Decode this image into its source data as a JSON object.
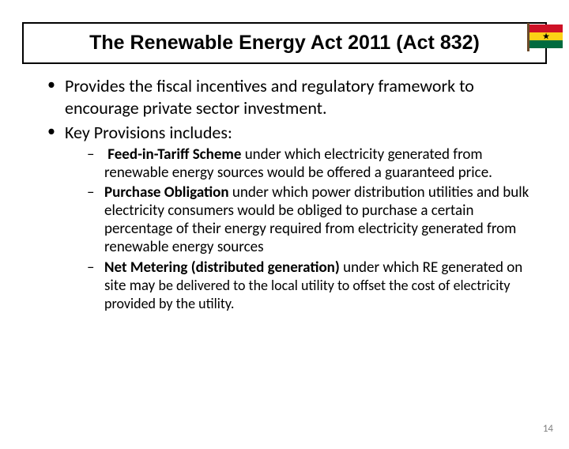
{
  "title": "The Renewable Energy Act 2011 (Act 832)",
  "bullets": {
    "b1": "Provides the fiscal incentives and regulatory framework to encourage private sector investment.",
    "b2": "Key Provisions includes:",
    "s1_bold": "Feed-in-Tariff Scheme",
    "s1_rest": " under which electricity generated from renewable energy sources would be offered a guaranteed price.",
    "s2_bold": "Purchase Obligation",
    "s2_rest": " under which power distribution utilities and bulk electricity consumers would be obliged to purchase a certain percentage of their energy required from electricity generated from renewable energy sources",
    "s3_bold": "Net Metering (distributed generation)",
    "s3_rest_a": " under which RE generated on site may ",
    "s3_rest_b": "be delivered to the local utility to offset the cost of electricity provided by the utility."
  },
  "slide_number": "14",
  "flag": {
    "colors": {
      "red": "#ce1126",
      "yellow": "#fcd116",
      "green": "#006b3f",
      "star": "#000000"
    }
  }
}
